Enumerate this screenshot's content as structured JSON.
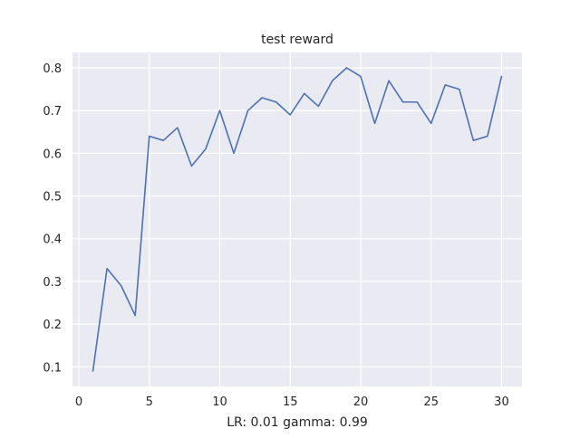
{
  "chart_data": {
    "type": "line",
    "title": "test reward",
    "xlabel": "LR: 0.01 gamma: 0.99",
    "ylabel": "",
    "xlim": [
      -0.45,
      31.45
    ],
    "ylim": [
      0.054,
      0.836
    ],
    "xticks": [
      0,
      5,
      10,
      15,
      20,
      25,
      30
    ],
    "yticks": [
      0.1,
      0.2,
      0.3,
      0.4,
      0.5,
      0.6,
      0.7,
      0.8
    ],
    "ytick_labels": [
      "0.1",
      "0.2",
      "0.3",
      "0.4",
      "0.5",
      "0.6",
      "0.7",
      "0.8"
    ],
    "grid": true,
    "series": [
      {
        "color": "#4c72b0",
        "x": [
          1,
          2,
          3,
          4,
          5,
          6,
          7,
          8,
          9,
          10,
          11,
          12,
          13,
          14,
          15,
          16,
          17,
          18,
          19,
          20,
          21,
          22,
          23,
          24,
          25,
          26,
          27,
          28,
          29,
          30
        ],
        "y": [
          0.09,
          0.33,
          0.29,
          0.22,
          0.64,
          0.63,
          0.66,
          0.57,
          0.61,
          0.7,
          0.6,
          0.7,
          0.73,
          0.72,
          0.69,
          0.74,
          0.71,
          0.77,
          0.8,
          0.78,
          0.67,
          0.77,
          0.72,
          0.72,
          0.67,
          0.76,
          0.75,
          0.63,
          0.64,
          0.78
        ]
      }
    ]
  },
  "colors": {
    "plot_background": "#eaeaf2",
    "grid": "#ffffff",
    "line": "#4c72b0"
  }
}
